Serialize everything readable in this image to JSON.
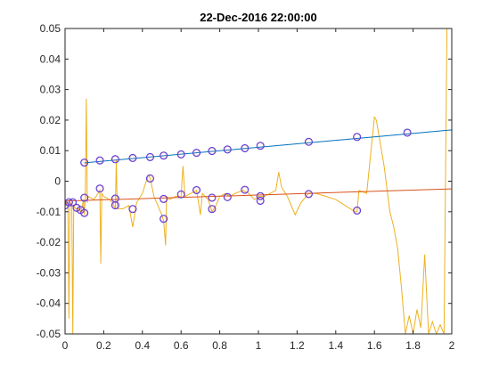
{
  "chart_data": {
    "type": "line",
    "title": "22-Dec-2016 22:00:00",
    "xlabel": "",
    "ylabel": "",
    "xlim": [
      0,
      2
    ],
    "ylim": [
      -0.05,
      0.05
    ],
    "x_ticks": [
      0,
      0.2,
      0.4,
      0.6,
      0.8,
      1,
      1.2,
      1.4,
      1.6,
      1.8,
      2
    ],
    "x_tick_labels": [
      "0",
      "0.2",
      "0.4",
      "0.6",
      "0.8",
      "1",
      "1.2",
      "1.4",
      "1.6",
      "1.8",
      "2"
    ],
    "y_ticks": [
      -0.05,
      -0.04,
      -0.03,
      -0.02,
      -0.01,
      0,
      0.01,
      0.02,
      0.03,
      0.04,
      0.05
    ],
    "y_tick_labels": [
      "-0.05",
      "-0.04",
      "-0.03",
      "-0.02",
      "-0.01",
      "0",
      "0.01",
      "0.02",
      "0.03",
      "0.04",
      "0.05"
    ],
    "grid": false,
    "legend": "none",
    "series": [
      {
        "kind": "line",
        "color": "#EDB120",
        "points": [
          [
            0.0,
            -0.008
          ],
          [
            0.005,
            -0.008
          ],
          [
            0.01,
            -0.006
          ],
          [
            0.015,
            -0.008
          ],
          [
            0.02,
            -0.045
          ],
          [
            0.025,
            -0.009
          ],
          [
            0.03,
            -0.007
          ],
          [
            0.035,
            -0.008
          ],
          [
            0.04,
            -0.05
          ],
          [
            0.045,
            -0.008
          ],
          [
            0.055,
            -0.009
          ],
          [
            0.07,
            -0.009
          ],
          [
            0.08,
            -0.01
          ],
          [
            0.09,
            -0.008
          ],
          [
            0.095,
            -0.006
          ],
          [
            0.1,
            -0.011
          ],
          [
            0.105,
            -0.004
          ],
          [
            0.11,
            0.027
          ],
          [
            0.115,
            -0.007
          ],
          [
            0.12,
            -0.005
          ],
          [
            0.15,
            -0.006
          ],
          [
            0.18,
            -0.003
          ],
          [
            0.185,
            -0.027
          ],
          [
            0.19,
            -0.004
          ],
          [
            0.2,
            -0.005
          ],
          [
            0.23,
            -0.006
          ],
          [
            0.245,
            -0.007
          ],
          [
            0.26,
            -0.009
          ],
          [
            0.265,
            0.007
          ],
          [
            0.27,
            -0.009
          ],
          [
            0.3,
            -0.009
          ],
          [
            0.33,
            -0.008
          ],
          [
            0.35,
            -0.015
          ],
          [
            0.37,
            -0.007
          ],
          [
            0.4,
            -0.004
          ],
          [
            0.43,
            0.002
          ],
          [
            0.44,
            0.001
          ],
          [
            0.46,
            -0.005
          ],
          [
            0.5,
            -0.011
          ],
          [
            0.51,
            -0.013
          ],
          [
            0.52,
            -0.021
          ],
          [
            0.525,
            -0.005
          ],
          [
            0.54,
            -0.006
          ],
          [
            0.57,
            -0.005
          ],
          [
            0.6,
            -0.005
          ],
          [
            0.61,
            0.005
          ],
          [
            0.62,
            -0.005
          ],
          [
            0.65,
            -0.004
          ],
          [
            0.68,
            -0.003
          ],
          [
            0.7,
            -0.011
          ],
          [
            0.71,
            -0.004
          ],
          [
            0.74,
            -0.006
          ],
          [
            0.76,
            -0.01
          ],
          [
            0.78,
            -0.008
          ],
          [
            0.8,
            -0.005
          ],
          [
            0.83,
            -0.004
          ],
          [
            0.85,
            -0.005
          ],
          [
            0.88,
            -0.004
          ],
          [
            0.92,
            -0.003
          ],
          [
            0.95,
            -0.004
          ],
          [
            0.98,
            -0.006
          ],
          [
            1.0,
            -0.005
          ],
          [
            1.03,
            -0.005
          ],
          [
            1.06,
            -0.004
          ],
          [
            1.09,
            -0.003
          ],
          [
            1.105,
            0.003
          ],
          [
            1.12,
            -0.002
          ],
          [
            1.15,
            -0.005
          ],
          [
            1.19,
            -0.011
          ],
          [
            1.22,
            -0.007
          ],
          [
            1.26,
            -0.004
          ],
          [
            1.3,
            -0.004
          ],
          [
            1.35,
            -0.005
          ],
          [
            1.4,
            -0.006
          ],
          [
            1.45,
            -0.008
          ],
          [
            1.5,
            -0.01
          ],
          [
            1.51,
            -0.01
          ],
          [
            1.52,
            -0.003
          ],
          [
            1.56,
            -0.004
          ],
          [
            1.6,
            0.021
          ],
          [
            1.61,
            0.02
          ],
          [
            1.65,
            0.005
          ],
          [
            1.68,
            -0.01
          ],
          [
            1.7,
            -0.015
          ],
          [
            1.72,
            -0.022
          ],
          [
            1.74,
            -0.035
          ],
          [
            1.76,
            -0.05
          ],
          [
            1.78,
            -0.044
          ],
          [
            1.8,
            -0.05
          ],
          [
            1.82,
            -0.042
          ],
          [
            1.84,
            -0.048
          ],
          [
            1.86,
            -0.024
          ],
          [
            1.88,
            -0.05
          ],
          [
            1.9,
            -0.046
          ],
          [
            1.92,
            -0.05
          ],
          [
            1.94,
            -0.047
          ],
          [
            1.96,
            -0.05
          ],
          [
            1.975,
            0.05
          ]
        ]
      },
      {
        "kind": "line",
        "color": "#0072BD",
        "points": [
          [
            0.1,
            0.006
          ],
          [
            2.0,
            0.0168
          ]
        ]
      },
      {
        "kind": "line",
        "color": "#D95319",
        "points": [
          [
            0.0,
            -0.0065
          ],
          [
            2.0,
            -0.0025
          ]
        ]
      },
      {
        "kind": "markers",
        "marker": "circle",
        "edge_color": "#4B2FE0",
        "fill_color": "#D98090",
        "points": [
          [
            0.0,
            -0.0079
          ],
          [
            0.02,
            -0.0069
          ],
          [
            0.04,
            -0.0069
          ],
          [
            0.06,
            -0.0087
          ],
          [
            0.08,
            -0.0094
          ],
          [
            0.1,
            -0.0104
          ],
          [
            0.1,
            -0.0054
          ],
          [
            0.1,
            0.0061
          ],
          [
            0.18,
            0.0068
          ],
          [
            0.18,
            -0.0024
          ],
          [
            0.26,
            0.0072
          ],
          [
            0.26,
            -0.0057
          ],
          [
            0.26,
            -0.0079
          ],
          [
            0.35,
            -0.0091
          ],
          [
            0.35,
            0.0076
          ],
          [
            0.44,
            0.0079
          ],
          [
            0.44,
            0.0009
          ],
          [
            0.51,
            0.0084
          ],
          [
            0.51,
            -0.0123
          ],
          [
            0.51,
            -0.0058
          ],
          [
            0.6,
            0.0088
          ],
          [
            0.6,
            -0.0043
          ],
          [
            0.68,
            0.0093
          ],
          [
            0.68,
            -0.0029
          ],
          [
            0.76,
            0.0099
          ],
          [
            0.76,
            -0.0091
          ],
          [
            0.76,
            -0.0054
          ],
          [
            0.84,
            0.0104
          ],
          [
            0.84,
            -0.0052
          ],
          [
            0.93,
            0.0108
          ],
          [
            0.93,
            -0.0028
          ],
          [
            1.01,
            0.0116
          ],
          [
            1.01,
            -0.0049
          ],
          [
            1.01,
            -0.0064
          ],
          [
            1.26,
            0.0129
          ],
          [
            1.26,
            -0.0042
          ],
          [
            1.51,
            0.0145
          ],
          [
            1.51,
            -0.0096
          ],
          [
            1.77,
            0.0159
          ]
        ]
      }
    ]
  }
}
